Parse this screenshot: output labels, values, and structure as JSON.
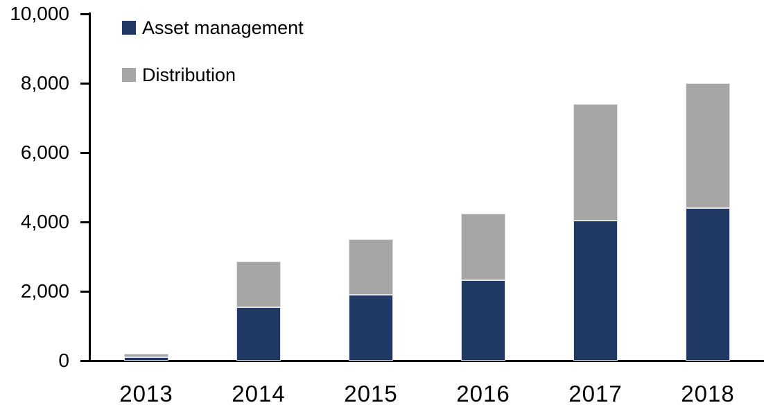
{
  "chart_data": {
    "type": "bar",
    "stacked": true,
    "title": "",
    "xlabel": "",
    "ylabel": "",
    "categories": [
      "2013",
      "2014",
      "2015",
      "2016",
      "2017",
      "2018"
    ],
    "series": [
      {
        "name": "Asset management",
        "color": "#1F3864",
        "values": [
          100,
          1550,
          1900,
          2330,
          4050,
          4400
        ]
      },
      {
        "name": "Distribution",
        "color": "#A6A6A6",
        "values": [
          100,
          1320,
          1600,
          1920,
          3350,
          3600
        ]
      }
    ],
    "ylim": [
      0,
      10000
    ],
    "ytick_step": 2000,
    "ytick_labels": [
      "0",
      "2,000",
      "4,000",
      "6,000",
      "8,000",
      "10,000"
    ],
    "grid": false,
    "legend_position": "top-left",
    "axis_color": "#000000",
    "background": "#FFFFFF"
  }
}
